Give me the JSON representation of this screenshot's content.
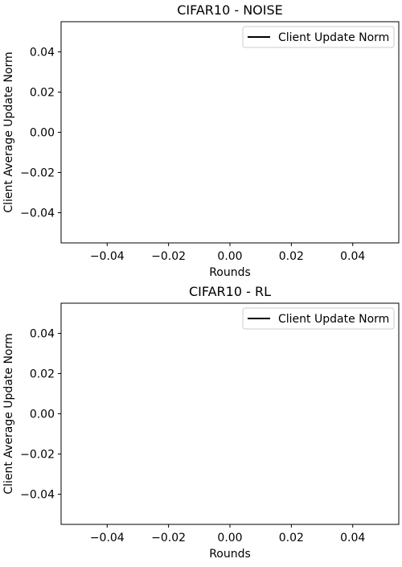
{
  "chart_data": [
    {
      "type": "line",
      "title": "CIFAR10 - NOISE",
      "xlabel": "Rounds",
      "ylabel": "Client Average Update Norm",
      "xlim": [
        -0.055,
        0.055
      ],
      "ylim": [
        -0.055,
        0.055
      ],
      "xticks": [
        "−0.04",
        "−0.02",
        "0.00",
        "0.02",
        "0.04"
      ],
      "yticks": [
        "−0.04",
        "−0.02",
        "0.00",
        "0.02",
        "0.04"
      ],
      "legend_position": "top-right",
      "series": [
        {
          "name": "Client Update Norm",
          "color": "#000000",
          "x": [],
          "y": []
        }
      ]
    },
    {
      "type": "line",
      "title": "CIFAR10 - RL",
      "xlabel": "Rounds",
      "ylabel": "Client Average Update Norm",
      "xlim": [
        -0.055,
        0.055
      ],
      "ylim": [
        -0.055,
        0.055
      ],
      "xticks": [
        "−0.04",
        "−0.02",
        "0.00",
        "0.02",
        "0.04"
      ],
      "yticks": [
        "−0.04",
        "−0.02",
        "0.00",
        "0.02",
        "0.04"
      ],
      "legend_position": "top-right",
      "series": [
        {
          "name": "Client Update Norm",
          "color": "#000000",
          "x": [],
          "y": []
        }
      ]
    }
  ]
}
